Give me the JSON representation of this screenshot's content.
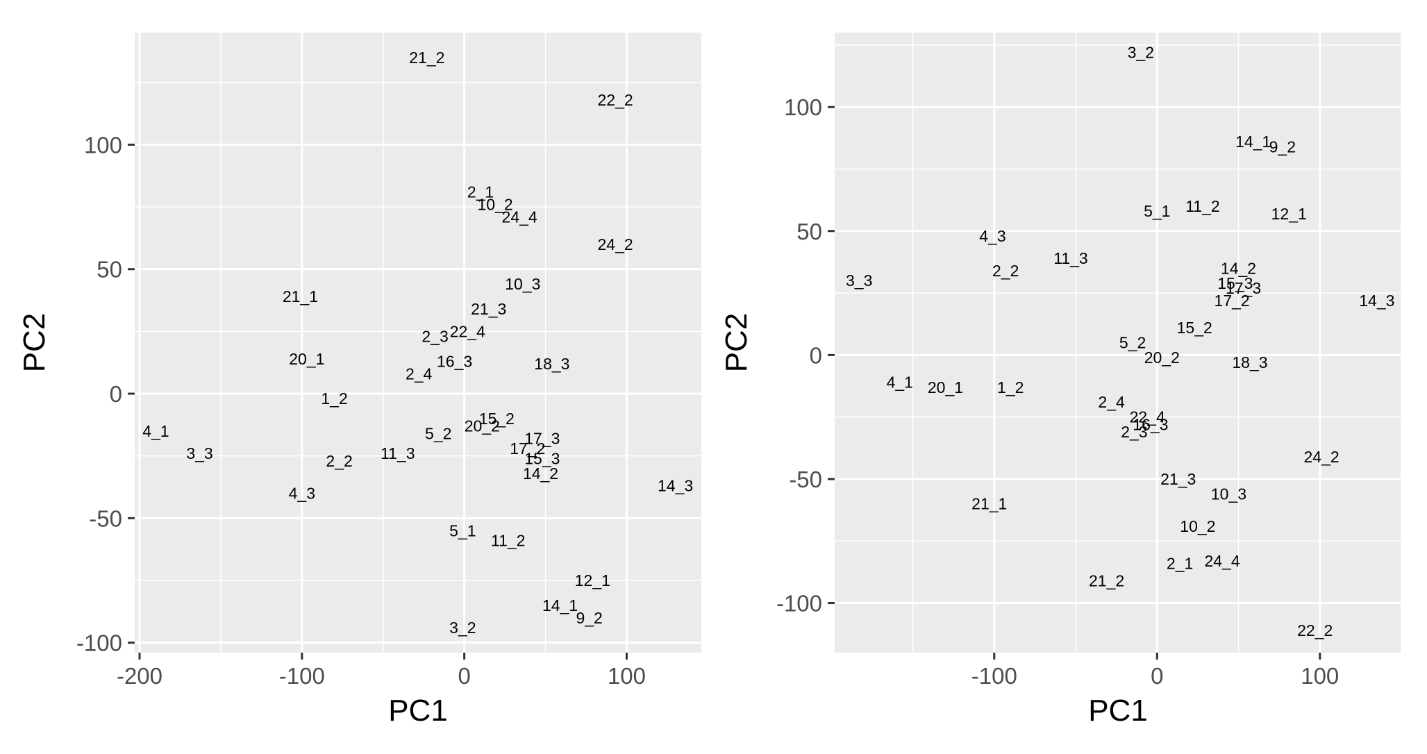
{
  "chart_data": [
    {
      "type": "scatter",
      "xlabel": "PC1",
      "ylabel": "PC2",
      "xlim": [
        -203,
        146
      ],
      "ylim": [
        -104,
        145
      ],
      "xticks": [
        -200,
        -100,
        0,
        100
      ],
      "yticks": [
        -100,
        -50,
        0,
        50,
        100
      ],
      "grid": true,
      "points": [
        {
          "label": "21_2",
          "x": -23,
          "y": 135
        },
        {
          "label": "22_2",
          "x": 93,
          "y": 118
        },
        {
          "label": "2_1",
          "x": 10,
          "y": 81
        },
        {
          "label": "10_2",
          "x": 19,
          "y": 76
        },
        {
          "label": "24_4",
          "x": 34,
          "y": 71
        },
        {
          "label": "24_2",
          "x": 93,
          "y": 60
        },
        {
          "label": "10_3",
          "x": 36,
          "y": 44
        },
        {
          "label": "21_1",
          "x": -101,
          "y": 39
        },
        {
          "label": "21_3",
          "x": 15,
          "y": 34
        },
        {
          "label": "2_3",
          "x": -18,
          "y": 23
        },
        {
          "label": "22_4",
          "x": 2,
          "y": 25
        },
        {
          "label": "20_1",
          "x": -97,
          "y": 14
        },
        {
          "label": "16_3",
          "x": -6,
          "y": 13
        },
        {
          "label": "18_3",
          "x": 54,
          "y": 12
        },
        {
          "label": "2_4",
          "x": -28,
          "y": 8
        },
        {
          "label": "1_2",
          "x": -80,
          "y": -2
        },
        {
          "label": "15_2",
          "x": 20,
          "y": -10
        },
        {
          "label": "20_2",
          "x": 11,
          "y": -13
        },
        {
          "label": "4_1",
          "x": -190,
          "y": -15
        },
        {
          "label": "5_2",
          "x": -16,
          "y": -16
        },
        {
          "label": "17_3",
          "x": 48,
          "y": -18
        },
        {
          "label": "17_2",
          "x": 39,
          "y": -22
        },
        {
          "label": "3_3",
          "x": -163,
          "y": -24
        },
        {
          "label": "11_3",
          "x": -41,
          "y": -24
        },
        {
          "label": "15_3",
          "x": 48,
          "y": -26
        },
        {
          "label": "2_2",
          "x": -77,
          "y": -27
        },
        {
          "label": "14_2",
          "x": 47,
          "y": -32
        },
        {
          "label": "14_3",
          "x": 130,
          "y": -37
        },
        {
          "label": "4_3",
          "x": -100,
          "y": -40
        },
        {
          "label": "5_1",
          "x": -1,
          "y": -55
        },
        {
          "label": "11_2",
          "x": 27,
          "y": -59
        },
        {
          "label": "12_1",
          "x": 79,
          "y": -75
        },
        {
          "label": "14_1",
          "x": 59,
          "y": -85
        },
        {
          "label": "9_2",
          "x": 77,
          "y": -90
        },
        {
          "label": "3_2",
          "x": -1,
          "y": -94
        }
      ]
    },
    {
      "type": "scatter",
      "xlabel": "PC1",
      "ylabel": "PC2",
      "xlim": [
        -198,
        150
      ],
      "ylim": [
        -120,
        130
      ],
      "xticks": [
        -100,
        0,
        100
      ],
      "yticks": [
        -100,
        -50,
        0,
        50,
        100
      ],
      "grid": true,
      "points": [
        {
          "label": "3_2",
          "x": -10,
          "y": 122
        },
        {
          "label": "14_1",
          "x": 59,
          "y": 86
        },
        {
          "label": "9_2",
          "x": 77,
          "y": 84
        },
        {
          "label": "5_1",
          "x": 0,
          "y": 58
        },
        {
          "label": "11_2",
          "x": 28,
          "y": 60
        },
        {
          "label": "12_1",
          "x": 81,
          "y": 57
        },
        {
          "label": "4_3",
          "x": -101,
          "y": 48
        },
        {
          "label": "11_3",
          "x": -53,
          "y": 39
        },
        {
          "label": "2_2",
          "x": -93,
          "y": 34
        },
        {
          "label": "14_2",
          "x": 50,
          "y": 35
        },
        {
          "label": "15_3",
          "x": 48,
          "y": 29
        },
        {
          "label": "17_3",
          "x": 53,
          "y": 27
        },
        {
          "label": "3_3",
          "x": -183,
          "y": 30
        },
        {
          "label": "14_3",
          "x": 135,
          "y": 22
        },
        {
          "label": "17_2",
          "x": 46,
          "y": 22
        },
        {
          "label": "15_2",
          "x": 23,
          "y": 11
        },
        {
          "label": "5_2",
          "x": -15,
          "y": 5
        },
        {
          "label": "20_2",
          "x": 3,
          "y": -1
        },
        {
          "label": "18_3",
          "x": 57,
          "y": -3
        },
        {
          "label": "4_1",
          "x": -158,
          "y": -11
        },
        {
          "label": "20_1",
          "x": -130,
          "y": -13
        },
        {
          "label": "1_2",
          "x": -90,
          "y": -13
        },
        {
          "label": "2_4",
          "x": -28,
          "y": -19
        },
        {
          "label": "22_4",
          "x": -6,
          "y": -25
        },
        {
          "label": "16_3",
          "x": -4,
          "y": -28
        },
        {
          "label": "2_3",
          "x": -14,
          "y": -31
        },
        {
          "label": "24_2",
          "x": 101,
          "y": -41
        },
        {
          "label": "21_3",
          "x": 13,
          "y": -50
        },
        {
          "label": "10_3",
          "x": 44,
          "y": -56
        },
        {
          "label": "21_1",
          "x": -103,
          "y": -60
        },
        {
          "label": "10_2",
          "x": 25,
          "y": -69
        },
        {
          "label": "2_1",
          "x": 14,
          "y": -84
        },
        {
          "label": "24_4",
          "x": 40,
          "y": -83
        },
        {
          "label": "21_2",
          "x": -31,
          "y": -91
        },
        {
          "label": "22_2",
          "x": 97,
          "y": -111
        }
      ]
    }
  ]
}
